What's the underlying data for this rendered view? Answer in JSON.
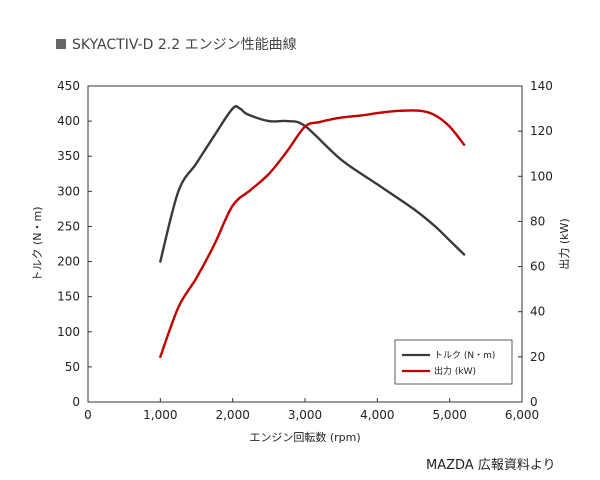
{
  "chart_data": {
    "type": "line",
    "title": "SKYACTIV-D 2.2 エンジン性能曲線",
    "xlabel": "エンジン回転数 (rpm)",
    "ylabel_left": "トルク (N・m)",
    "ylabel_right": "出力 (kW)",
    "xlim": [
      0,
      6000
    ],
    "ylim_left": [
      0,
      450
    ],
    "ylim_right": [
      0,
      140
    ],
    "x_ticks": [
      "0",
      "1,000",
      "2,000",
      "3,000",
      "4,000",
      "5,000",
      "6,000"
    ],
    "y_left_ticks": [
      "0",
      "50",
      "100",
      "150",
      "200",
      "250",
      "300",
      "350",
      "400",
      "450"
    ],
    "y_right_ticks": [
      "0",
      "20",
      "40",
      "60",
      "80",
      "100",
      "120",
      "140"
    ],
    "grid": false,
    "legend_position": "bottom-right",
    "series": [
      {
        "name": "トルク (N・m)",
        "axis": "left",
        "color": "#3a3a3a",
        "x": [
          1000,
          1250,
          1500,
          1750,
          2000,
          2100,
          2200,
          2500,
          2750,
          3000,
          3500,
          4000,
          4500,
          4800,
          5000,
          5200
        ],
        "y": [
          200,
          300,
          340,
          380,
          418,
          418,
          410,
          400,
          400,
          393,
          345,
          310,
          275,
          250,
          230,
          210
        ]
      },
      {
        "name": "出力 (kW)",
        "axis": "right",
        "color": "#c00000",
        "x": [
          1000,
          1250,
          1500,
          1750,
          2000,
          2250,
          2500,
          2750,
          3000,
          3200,
          3500,
          3800,
          4000,
          4300,
          4600,
          4800,
          5000,
          5200
        ],
        "y": [
          20,
          42,
          55,
          70,
          87,
          94,
          101,
          111,
          122,
          124,
          126,
          127,
          128,
          129,
          129,
          127,
          122,
          114
        ]
      }
    ]
  },
  "credit": "MAZDA 広報資料より"
}
